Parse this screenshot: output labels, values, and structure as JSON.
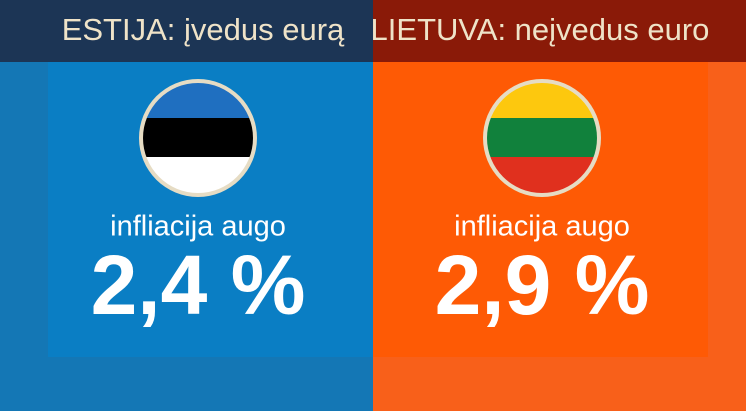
{
  "panels": [
    {
      "header": "ESTIJA: įvedus eurą",
      "caption": "infliacija augo",
      "value": "2,4 %"
    },
    {
      "header": "LIETUVA: neįvedus euro",
      "caption": "infliacija augo",
      "value": "2,9 %"
    }
  ]
}
